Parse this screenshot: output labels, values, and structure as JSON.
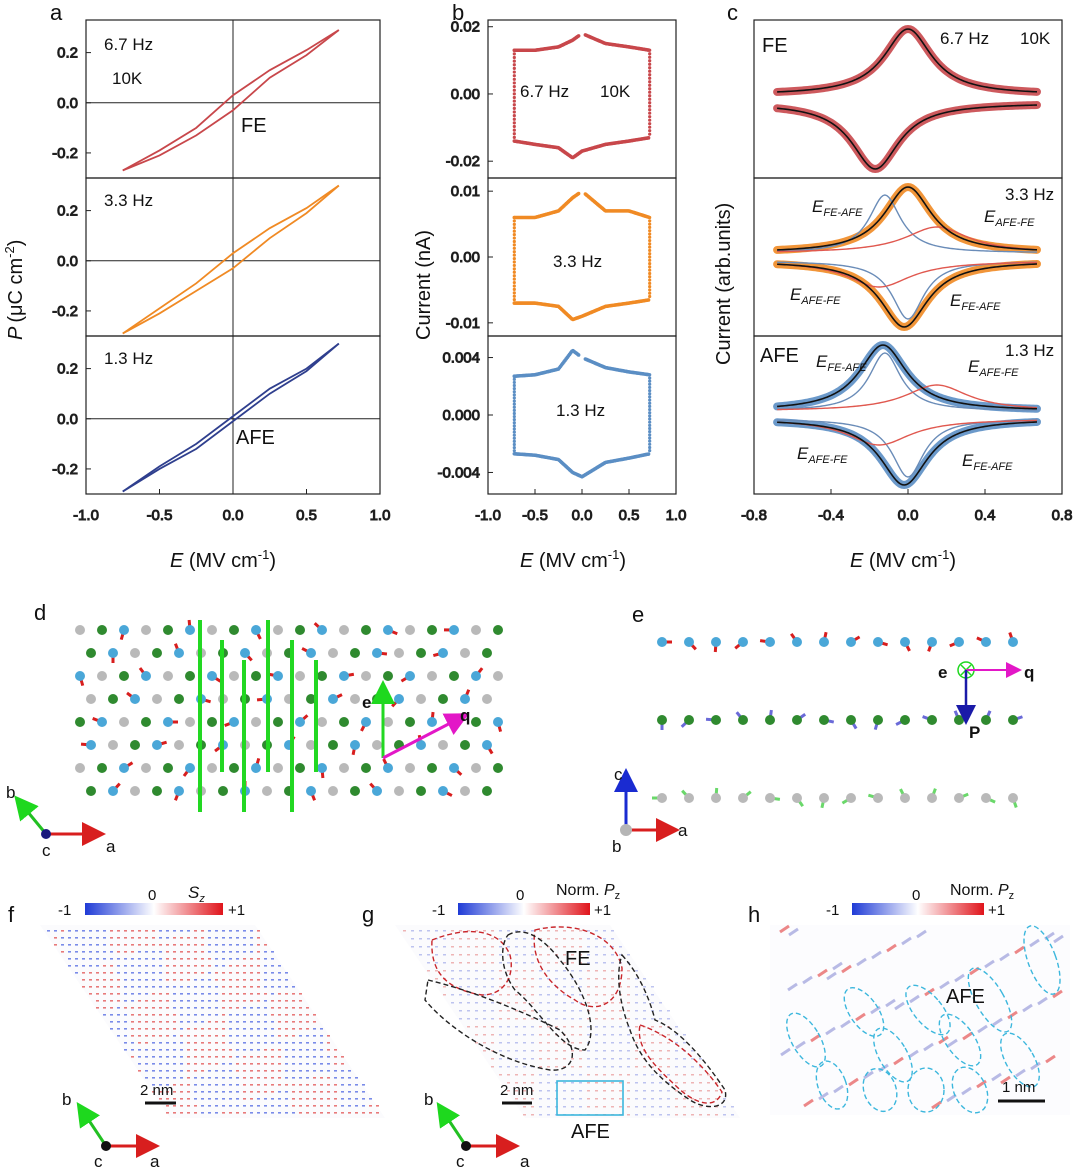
{
  "panels": {
    "a": {
      "letter": "a",
      "freq_top": "6.7 Hz",
      "temp": "10K",
      "freq_mid": "3.3 Hz",
      "freq_bot": "1.3 Hz",
      "label_top": "FE",
      "label_bot": "AFE",
      "ylabel_sym": "P",
      "ylabel_unit": "(μC cm",
      "ylabel_exp": "-2",
      "ylabel_close": ")"
    },
    "b": {
      "letter": "b",
      "freq_top": "6.7 Hz",
      "temp": "10K",
      "freq_mid": "3.3 Hz",
      "freq_bot": "1.3 Hz",
      "ylabel": "Current (nA)"
    },
    "c": {
      "letter": "c",
      "label_top": "FE",
      "freq_top": "6.7 Hz",
      "temp": "10K",
      "freq_mid": "3.3 Hz",
      "label_bot": "AFE",
      "freq_bot": "1.3 Hz",
      "ylabel": "Current (arb.units)",
      "e_fe_afe": "E",
      "sub_fe_afe": "FE-AFE",
      "e_afe_fe": "E",
      "sub_afe_fe": "AFE-FE"
    },
    "d": {
      "letter": "d",
      "vec_e": "e",
      "vec_q": "q",
      "axis_b": "b",
      "axis_c": "c",
      "axis_a": "a"
    },
    "e": {
      "letter": "e",
      "vec_e": "e",
      "vec_q": "q",
      "vec_p": "P",
      "axis_c": "c",
      "axis_b": "b",
      "axis_a": "a"
    },
    "f": {
      "letter": "f",
      "cbar_min": "-1",
      "cbar_mid": "0",
      "cbar_max": "+1",
      "cbar_sym": "S",
      "cbar_sub": "z",
      "scale": "2 nm",
      "axis_b": "b",
      "axis_c": "c",
      "axis_a": "a"
    },
    "g": {
      "letter": "g",
      "cbar_min": "-1",
      "cbar_mid": "0",
      "cbar_max": "+1",
      "cbar_title": "Norm. ",
      "cbar_sym": "P",
      "cbar_sub": "z",
      "label_fe": "FE",
      "label_afe": "AFE",
      "scale": "2 nm",
      "axis_b": "b",
      "axis_c": "c",
      "axis_a": "a"
    },
    "h": {
      "letter": "h",
      "cbar_min": "-1",
      "cbar_mid": "0",
      "cbar_max": "+1",
      "cbar_title": "Norm. ",
      "cbar_sym": "P",
      "cbar_sub": "z",
      "label_afe": "AFE",
      "scale": "1 nm"
    }
  },
  "xlabel": {
    "sym": "E",
    "unit": " (MV cm",
    "exp": "-1",
    "close": ")"
  },
  "colors": {
    "red": "#c8474b",
    "orange": "#f08a24",
    "navy": "#2f3f8e",
    "blue": "#5b8ec4",
    "black": "#111111",
    "thin_red": "#e0584f",
    "thin_blue": "#6a8cb8"
  },
  "chart_data": [
    {
      "type": "line",
      "title": "a (top)",
      "series": [
        {
          "name": "6.7 Hz 10K",
          "color": "#c8474b"
        }
      ],
      "xlabel": "E (MV cm-1)",
      "ylabel": "P (μC cm-2)",
      "xlim": [
        -1.0,
        1.0
      ],
      "ylim": [
        -0.3,
        0.33
      ],
      "xticks": [
        -1.0,
        -0.5,
        0.0,
        0.5,
        1.0
      ],
      "yticks": [
        -0.2,
        0.0,
        0.2
      ],
      "x": [
        -0.75,
        -0.5,
        -0.25,
        0.0,
        0.25,
        0.5,
        0.72
      ],
      "y_upper": [
        -0.27,
        -0.19,
        -0.1,
        0.03,
        0.13,
        0.21,
        0.29
      ],
      "y_lower": [
        -0.27,
        -0.21,
        -0.13,
        -0.03,
        0.1,
        0.19,
        0.29
      ]
    },
    {
      "type": "line",
      "title": "a (middle)",
      "series": [
        {
          "name": "3.3 Hz",
          "color": "#f08a24"
        }
      ],
      "xlim": [
        -1.0,
        1.0
      ],
      "ylim": [
        -0.3,
        0.33
      ],
      "yticks": [
        -0.2,
        0.0,
        0.2
      ],
      "x": [
        -0.75,
        -0.5,
        -0.25,
        0.0,
        0.25,
        0.5,
        0.72
      ],
      "y_upper": [
        -0.29,
        -0.19,
        -0.09,
        0.03,
        0.13,
        0.21,
        0.3
      ],
      "y_lower": [
        -0.29,
        -0.21,
        -0.12,
        -0.03,
        0.09,
        0.19,
        0.3
      ]
    },
    {
      "type": "line",
      "title": "a (bottom)",
      "series": [
        {
          "name": "1.3 Hz",
          "color": "#2f3f8e"
        }
      ],
      "xlim": [
        -1.0,
        1.0
      ],
      "ylim": [
        -0.3,
        0.33
      ],
      "yticks": [
        -0.2,
        0.0,
        0.2
      ],
      "x": [
        -0.75,
        -0.5,
        -0.25,
        0.0,
        0.25,
        0.5,
        0.72
      ],
      "y_upper": [
        -0.29,
        -0.19,
        -0.1,
        0.01,
        0.12,
        0.2,
        0.3
      ],
      "y_lower": [
        -0.29,
        -0.2,
        -0.12,
        -0.01,
        0.1,
        0.19,
        0.3
      ]
    },
    {
      "type": "scatter",
      "title": "b (top)",
      "series": [
        {
          "name": "6.7 Hz 10K",
          "color": "#c8474b"
        }
      ],
      "xlabel": "E (MV cm-1)",
      "ylabel": "Current (nA)",
      "xlim": [
        -1.0,
        1.0
      ],
      "ylim": [
        -0.025,
        0.022
      ],
      "xticks": [
        -1.0,
        -0.5,
        0.0,
        0.5,
        1.0
      ],
      "yticks": [
        -0.02,
        0.0,
        0.02
      ],
      "x": [
        -0.72,
        -0.5,
        -0.25,
        -0.1,
        0.0,
        0.25,
        0.5,
        0.72
      ],
      "y_up": [
        0.013,
        0.013,
        0.014,
        0.016,
        0.018,
        0.015,
        0.014,
        0.013
      ],
      "y_down": [
        -0.014,
        -0.015,
        -0.016,
        -0.019,
        -0.017,
        -0.015,
        -0.014,
        -0.013
      ]
    },
    {
      "type": "scatter",
      "title": "b (middle)",
      "series": [
        {
          "name": "3.3 Hz",
          "color": "#f08a24"
        }
      ],
      "xlim": [
        -1.0,
        1.0
      ],
      "ylim": [
        -0.012,
        0.012
      ],
      "yticks": [
        -0.01,
        0.0,
        0.01
      ],
      "x": [
        -0.72,
        -0.5,
        -0.25,
        -0.1,
        0.0,
        0.25,
        0.5,
        0.72
      ],
      "y_up": [
        0.006,
        0.006,
        0.007,
        0.009,
        0.01,
        0.007,
        0.007,
        0.006
      ],
      "y_down": [
        -0.007,
        -0.007,
        -0.0075,
        -0.0095,
        -0.009,
        -0.0075,
        -0.007,
        -0.0065
      ]
    },
    {
      "type": "scatter",
      "title": "b (bottom)",
      "series": [
        {
          "name": "1.3 Hz",
          "color": "#5b8ec4"
        }
      ],
      "xlim": [
        -1.0,
        1.0
      ],
      "ylim": [
        -0.0055,
        0.0055
      ],
      "yticks": [
        -0.004,
        0.0,
        0.004
      ],
      "x": [
        -0.72,
        -0.5,
        -0.25,
        -0.1,
        0.0,
        0.25,
        0.5,
        0.72
      ],
      "y_up": [
        0.0027,
        0.0028,
        0.0032,
        0.0045,
        0.004,
        0.0033,
        0.003,
        0.0028
      ],
      "y_down": [
        -0.0027,
        -0.0028,
        -0.0031,
        -0.004,
        -0.0043,
        -0.0033,
        -0.003,
        -0.0027
      ]
    },
    {
      "type": "line",
      "title": "c (top)",
      "series": [
        {
          "name": "FE 6.7 Hz 10K data",
          "color": "#c8474b"
        },
        {
          "name": "fit",
          "color": "#111111"
        }
      ],
      "xlabel": "E (MV cm-1)",
      "ylabel": "Current (arb.units)",
      "xlim": [
        -0.8,
        0.8
      ],
      "xticks": [
        -0.8,
        -0.4,
        0.0,
        0.4,
        0.8
      ],
      "peak_up_x": 0.02,
      "peak_down_x": -0.17
    },
    {
      "type": "line",
      "title": "c (middle)",
      "series": [
        {
          "name": "3.3 Hz data",
          "color": "#f08a24"
        },
        {
          "name": "fit",
          "color": "#111111"
        },
        {
          "name": "FE-AFE component",
          "color": "#6a8cb8"
        },
        {
          "name": "AFE-FE component",
          "color": "#e0584f"
        }
      ],
      "xlim": [
        -0.8,
        0.8
      ]
    },
    {
      "type": "line",
      "title": "c (bottom)",
      "series": [
        {
          "name": "AFE 1.3 Hz data",
          "color": "#5b8ec4"
        },
        {
          "name": "fit",
          "color": "#111111"
        },
        {
          "name": "FE-AFE component",
          "color": "#6a8cb8"
        },
        {
          "name": "AFE-FE component",
          "color": "#e0584f"
        }
      ],
      "xlim": [
        -0.8,
        0.8
      ]
    }
  ]
}
